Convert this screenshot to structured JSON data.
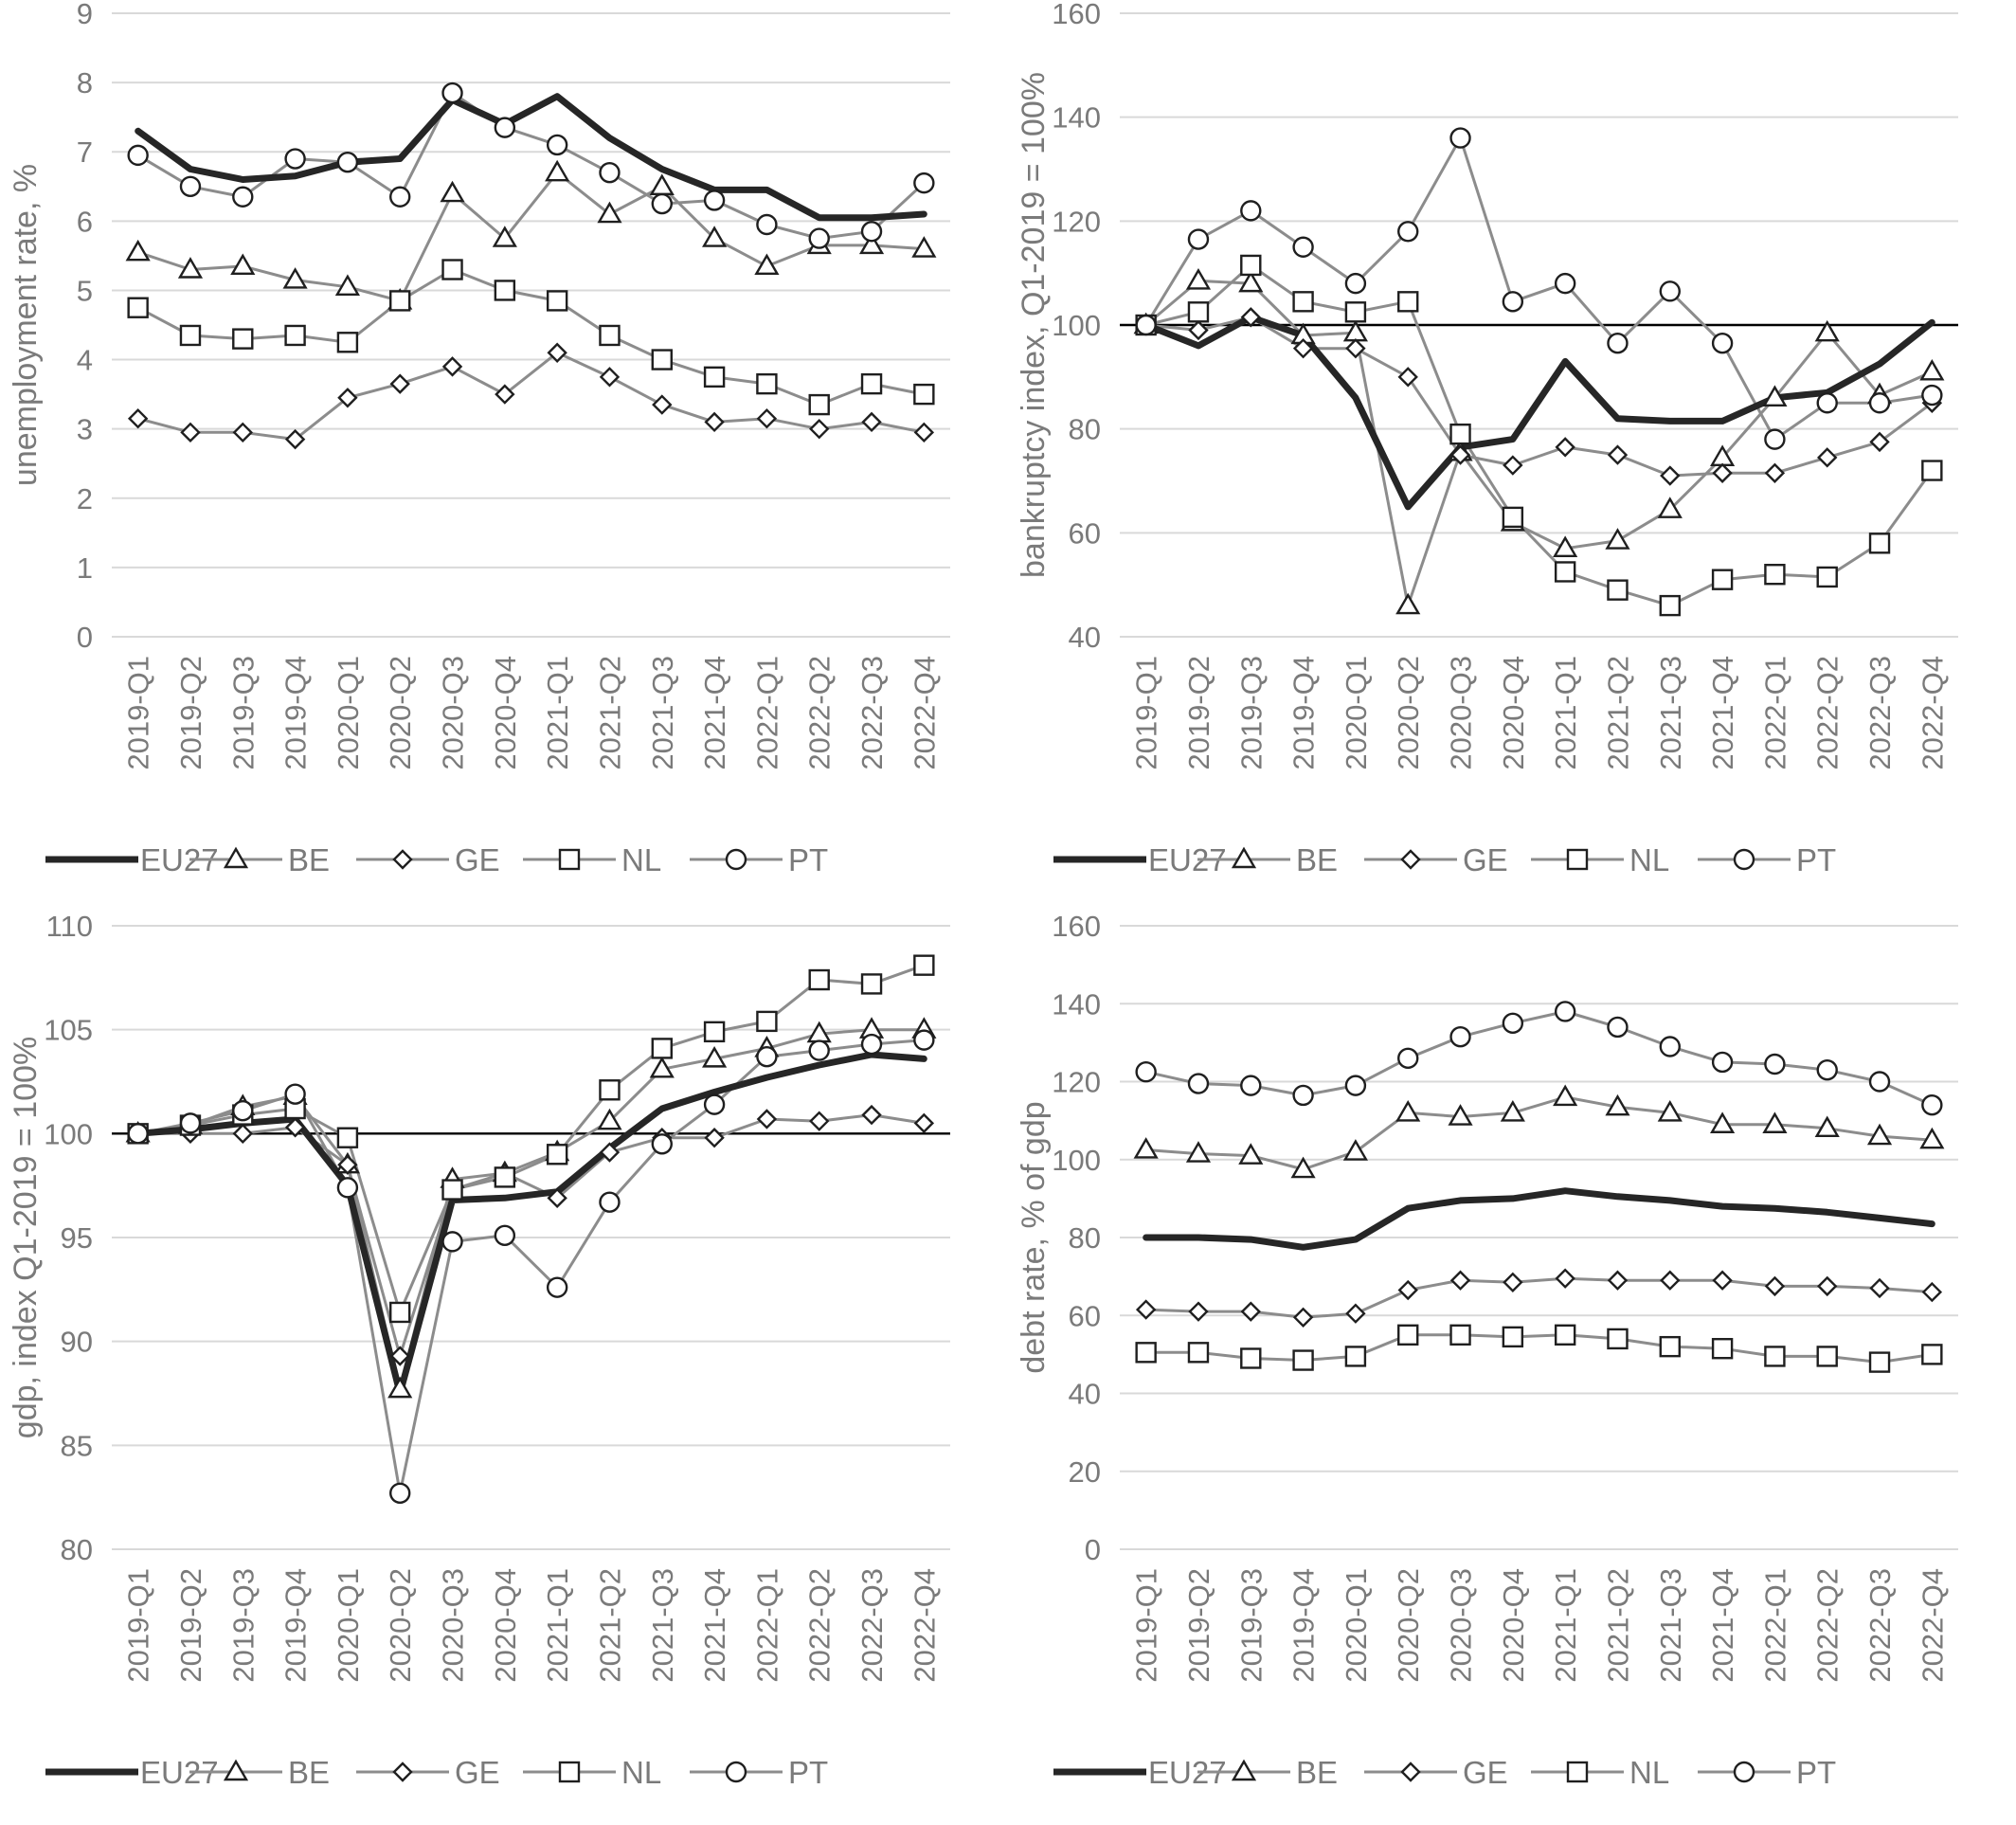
{
  "colors": {
    "eu27": "#262626",
    "country": "#8c8c8c",
    "grid": "#d9d9d9",
    "ref_line": "#000000",
    "text": "#7a7a7a"
  },
  "chart_data": [
    {
      "type": "line",
      "ylabel": "unemployment rate, %",
      "xlabel": "",
      "ylim": [
        0,
        9
      ],
      "yticks": [
        0,
        1,
        2,
        3,
        4,
        5,
        6,
        7,
        8,
        9
      ],
      "grid": true,
      "legend_position": "bottom",
      "reference_line": null,
      "categories": [
        "2019-Q1",
        "2019-Q2",
        "2019-Q3",
        "2019-Q4",
        "2020-Q1",
        "2020-Q2",
        "2020-Q3",
        "2020-Q4",
        "2021-Q1",
        "2021-Q2",
        "2021-Q3",
        "2021-Q4",
        "2022-Q1",
        "2022-Q2",
        "2022-Q3",
        "2022-Q4"
      ],
      "series": [
        {
          "name": "EU27",
          "marker": "none",
          "values": [
            7.3,
            6.75,
            6.6,
            6.65,
            6.85,
            6.9,
            7.75,
            7.4,
            7.8,
            7.2,
            6.75,
            6.45,
            6.45,
            6.05,
            6.05,
            6.1
          ]
        },
        {
          "name": "BE",
          "marker": "triangle",
          "values": [
            5.55,
            5.3,
            5.35,
            5.15,
            5.05,
            4.85,
            6.4,
            5.75,
            6.7,
            6.1,
            6.5,
            5.75,
            5.35,
            5.65,
            5.65,
            5.6
          ]
        },
        {
          "name": "GE",
          "marker": "diamond",
          "values": [
            3.15,
            2.95,
            2.95,
            2.85,
            3.45,
            3.65,
            3.9,
            3.5,
            4.1,
            3.75,
            3.35,
            3.1,
            3.15,
            3.0,
            3.1,
            2.95
          ]
        },
        {
          "name": "NL",
          "marker": "square",
          "values": [
            4.75,
            4.35,
            4.3,
            4.35,
            4.25,
            4.85,
            5.3,
            5.0,
            4.85,
            4.35,
            4.0,
            3.75,
            3.65,
            3.35,
            3.65,
            3.5
          ]
        },
        {
          "name": "PT",
          "marker": "circle",
          "values": [
            6.95,
            6.5,
            6.35,
            6.9,
            6.85,
            6.35,
            7.85,
            7.35,
            7.1,
            6.7,
            6.25,
            6.3,
            5.95,
            5.75,
            5.85,
            6.55
          ]
        }
      ]
    },
    {
      "type": "line",
      "ylabel": "bankruptcy index, Q1-2019 = 100%",
      "xlabel": "",
      "ylim": [
        40,
        160
      ],
      "yticks": [
        40,
        60,
        80,
        100,
        120,
        140,
        160
      ],
      "grid": true,
      "legend_position": "bottom",
      "reference_line": 100,
      "categories": [
        "2019-Q1",
        "2019-Q2",
        "2019-Q3",
        "2019-Q4",
        "2020-Q1",
        "2020-Q2",
        "2020-Q3",
        "2020-Q4",
        "2021-Q1",
        "2021-Q2",
        "2021-Q3",
        "2021-Q4",
        "2022-Q1",
        "2022-Q2",
        "2022-Q3",
        "2022-Q4"
      ],
      "series": [
        {
          "name": "EU27",
          "marker": "none",
          "values": [
            100,
            96,
            101.5,
            98,
            86,
            65,
            76.5,
            78,
            93,
            82,
            81.5,
            81.5,
            86,
            87,
            92.5,
            100.5
          ]
        },
        {
          "name": "BE",
          "marker": "triangle",
          "values": [
            100,
            108.5,
            108,
            98,
            98.5,
            46,
            75.5,
            62,
            57,
            58.5,
            64.5,
            74.5,
            86,
            98.5,
            86.5,
            91
          ]
        },
        {
          "name": "GE",
          "marker": "diamond",
          "values": [
            100,
            99,
            101.5,
            95.5,
            95.5,
            90,
            75,
            73,
            76.5,
            75,
            71,
            71.5,
            71.5,
            74.5,
            77.5,
            85
          ]
        },
        {
          "name": "NL",
          "marker": "square",
          "values": [
            100,
            102.5,
            111.5,
            104.5,
            102.5,
            104.5,
            79,
            63,
            52.5,
            49,
            46,
            51,
            52,
            51.5,
            58,
            72
          ]
        },
        {
          "name": "PT",
          "marker": "circle",
          "values": [
            100,
            116.5,
            122,
            115,
            108,
            118,
            136,
            104.5,
            108,
            96.5,
            106.5,
            96.5,
            78,
            85,
            85,
            86.5
          ]
        }
      ]
    },
    {
      "type": "line",
      "ylabel": "gdp, index Q1-2019 = 100%",
      "xlabel": "",
      "ylim": [
        80,
        110
      ],
      "yticks": [
        80,
        85,
        90,
        95,
        100,
        105,
        110
      ],
      "grid": true,
      "legend_position": "bottom",
      "reference_line": 100,
      "categories": [
        "2019-Q1",
        "2019-Q2",
        "2019-Q3",
        "2019-Q4",
        "2020-Q1",
        "2020-Q2",
        "2020-Q3",
        "2020-Q4",
        "2021-Q1",
        "2021-Q2",
        "2021-Q3",
        "2021-Q4",
        "2022-Q1",
        "2022-Q2",
        "2022-Q3",
        "2022-Q4"
      ],
      "series": [
        {
          "name": "EU27",
          "marker": "none",
          "values": [
            100,
            100.2,
            100.5,
            100.7,
            97.5,
            87.5,
            96.8,
            96.9,
            97.2,
            99.3,
            101.2,
            102,
            102.7,
            103.3,
            103.8,
            103.6
          ]
        },
        {
          "name": "BE",
          "marker": "triangle",
          "values": [
            100,
            100.4,
            101.3,
            101.8,
            98.5,
            87.7,
            97.8,
            98.1,
            99.1,
            100.6,
            103.1,
            103.6,
            104.1,
            104.8,
            105,
            105
          ]
        },
        {
          "name": "GE",
          "marker": "diamond",
          "values": [
            100,
            100,
            100,
            100.3,
            98.5,
            89.3,
            97.3,
            98.1,
            96.9,
            99.1,
            99.8,
            99.8,
            100.7,
            100.6,
            100.9,
            100.5
          ]
        },
        {
          "name": "NL",
          "marker": "square",
          "values": [
            100,
            100.4,
            100.9,
            101.2,
            99.8,
            91.4,
            97.3,
            97.9,
            99,
            102.1,
            104.1,
            104.9,
            105.4,
            107.4,
            107.2,
            108.1
          ]
        },
        {
          "name": "PT",
          "marker": "circle",
          "values": [
            100,
            100.5,
            101.1,
            101.9,
            97.4,
            82.7,
            94.8,
            95.1,
            92.6,
            96.7,
            99.5,
            101.4,
            103.7,
            104,
            104.3,
            104.5
          ]
        }
      ]
    },
    {
      "type": "line",
      "ylabel": "debt rate, % of gdp",
      "xlabel": "",
      "ylim": [
        0,
        160
      ],
      "yticks": [
        0,
        20,
        40,
        60,
        80,
        100,
        120,
        140,
        160
      ],
      "grid": true,
      "legend_position": "bottom",
      "reference_line": null,
      "categories": [
        "2019-Q1",
        "2019-Q2",
        "2019-Q3",
        "2019-Q4",
        "2020-Q1",
        "2020-Q2",
        "2020-Q3",
        "2020-Q4",
        "2021-Q1",
        "2021-Q2",
        "2021-Q3",
        "2021-Q4",
        "2022-Q1",
        "2022-Q2",
        "2022-Q3",
        "2022-Q4"
      ],
      "series": [
        {
          "name": "EU27",
          "marker": "none",
          "values": [
            80,
            80,
            79.5,
            77.5,
            79.5,
            87.5,
            89.5,
            90,
            92,
            90.5,
            89.5,
            88,
            87.5,
            86.5,
            85,
            83.5
          ]
        },
        {
          "name": "BE",
          "marker": "triangle",
          "values": [
            102.5,
            101.5,
            101,
            97.5,
            102,
            112,
            111,
            112,
            116,
            113.5,
            112,
            109,
            109,
            108,
            106,
            105
          ]
        },
        {
          "name": "GE",
          "marker": "diamond",
          "values": [
            61.5,
            61,
            61,
            59.5,
            60.5,
            66.5,
            69,
            68.5,
            69.5,
            69,
            69,
            69,
            67.5,
            67.5,
            67,
            66
          ]
        },
        {
          "name": "NL",
          "marker": "square",
          "values": [
            50.5,
            50.5,
            49,
            48.5,
            49.5,
            55,
            55,
            54.5,
            55,
            54,
            52,
            51.5,
            49.5,
            49.5,
            48,
            50
          ]
        },
        {
          "name": "PT",
          "marker": "circle",
          "values": [
            122.5,
            119.5,
            119,
            116.5,
            119,
            126,
            131.5,
            135,
            138,
            134,
            129,
            125,
            124.5,
            123,
            120,
            114
          ]
        }
      ]
    }
  ]
}
